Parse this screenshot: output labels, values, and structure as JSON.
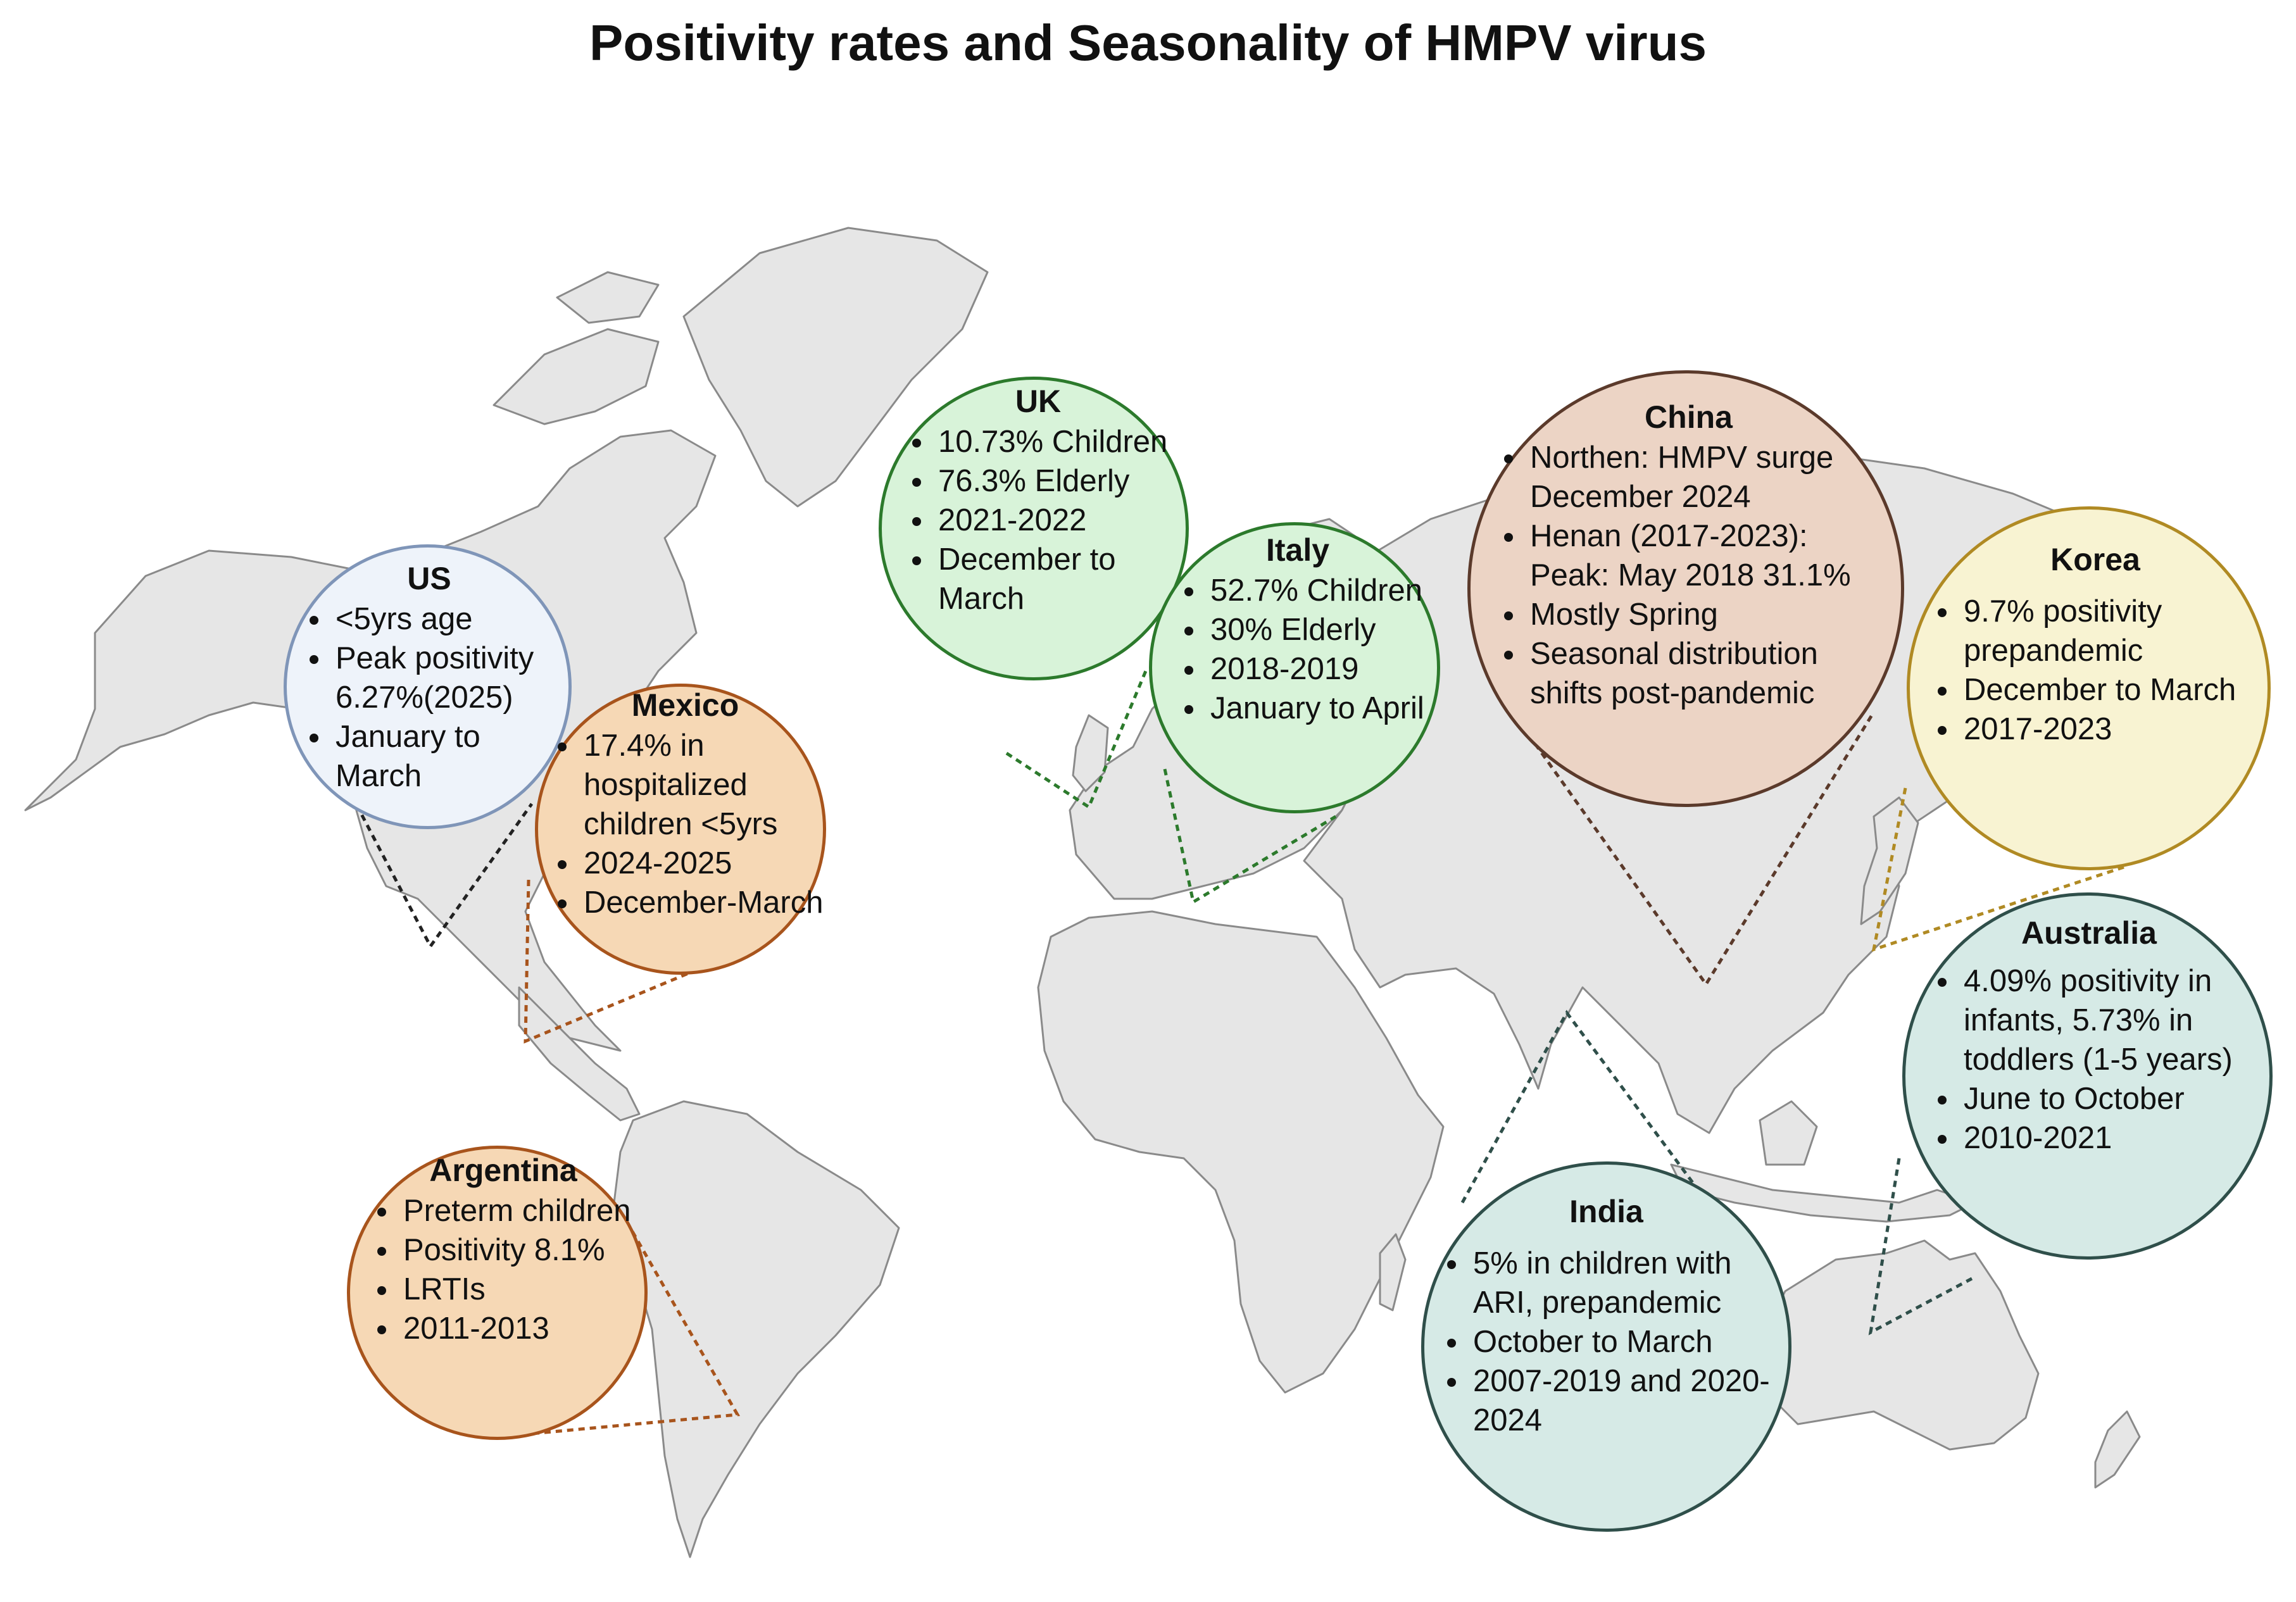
{
  "title": "Positivity rates and Seasonality of HMPV virus",
  "colors": {
    "land": "#e6e6e6",
    "land_stroke": "#8a8a8a"
  },
  "regions": {
    "us": {
      "name": "US",
      "points": [
        "<5yrs age",
        "Peak positivity 6.27%(2025)",
        "January to March"
      ],
      "fill": "#eef3fa",
      "stroke": "#7f95b8",
      "leader": "#222222"
    },
    "mexico": {
      "name": "Mexico",
      "points": [
        "17.4%  in hospitalized children <5yrs",
        "2024-2025",
        "December-March"
      ],
      "fill": "#f6d8b5",
      "stroke": "#a8541c",
      "leader": "#a8541c"
    },
    "argentina": {
      "name": "Argentina",
      "points": [
        "Preterm children",
        "Positivity 8.1%",
        "LRTIs",
        "2011-2013"
      ],
      "fill": "#f6d8b5",
      "stroke": "#a8541c",
      "leader": "#a8541c"
    },
    "uk": {
      "name": "UK",
      "points": [
        "10.73% Children",
        "76.3% Elderly",
        "2021-2022",
        "December to March"
      ],
      "fill": "#d8f3d9",
      "stroke": "#2c7a2c",
      "leader": "#2c7a2c"
    },
    "italy": {
      "name": "Italy",
      "points": [
        "52.7% Children",
        "30% Elderly",
        "2018-2019",
        "January to April"
      ],
      "fill": "#d8f3d9",
      "stroke": "#2c7a2c",
      "leader": "#2c7a2c"
    },
    "china": {
      "name": "China",
      "points": [
        "Northen: HMPV surge December 2024",
        "Henan (2017-2023): Peak: May 2018 31.1%",
        "Mostly Spring",
        "Seasonal distribution shifts post-pandemic"
      ],
      "fill": "#ecd4c5",
      "stroke": "#5b3a2b",
      "leader": "#5b3a2b"
    },
    "korea": {
      "name": "Korea",
      "points": [
        "9.7%  positivity prepandemic",
        "December to March",
        "2017-2023"
      ],
      "fill": "#f8f3d2",
      "stroke": "#b08a23",
      "leader": "#b08a23"
    },
    "australia": {
      "name": "Australia",
      "points": [
        "4.09% positivity in infants, 5.73% in toddlers (1-5 years)",
        "June to October",
        "2010-2021"
      ],
      "fill": "#d6eae6",
      "stroke": "#2f4f4a",
      "leader": "#2f4f4a"
    },
    "india": {
      "name": "India",
      "points": [
        "5% in children with ARI, prepandemic",
        "October to March",
        "2007-2019 and 2020-2024"
      ],
      "fill": "#d6eae6",
      "stroke": "#2f4f4a",
      "leader": "#2f4f4a"
    }
  }
}
